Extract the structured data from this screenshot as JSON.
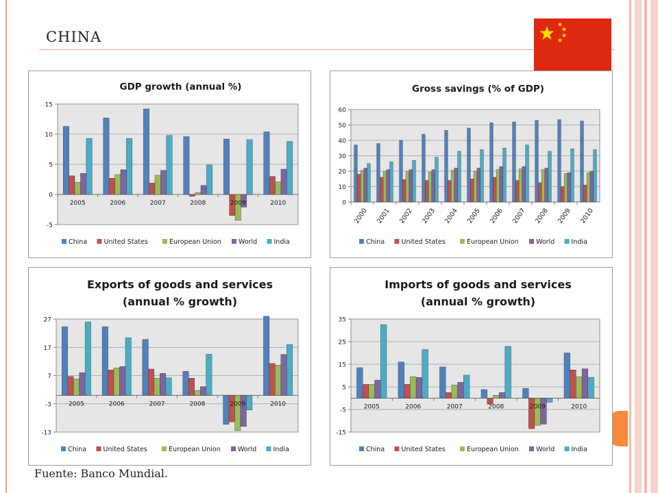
{
  "slide": {
    "title": "CHINA",
    "source": "Fuente: Banco Mundial."
  },
  "colors": {
    "China": "#4f81bd",
    "United States": "#c0504d",
    "European Union": "#9bbb59",
    "World": "#8064a2",
    "India": "#4bacc6",
    "plot_background": "#e6e6e6",
    "flag_red": "#de2910",
    "flag_star": "#ffde00"
  },
  "chart_data": [
    {
      "id": "gdp",
      "type": "bar",
      "title": [
        "GDP growth (annual %)"
      ],
      "categories": [
        "2005",
        "2006",
        "2007",
        "2008",
        "2009",
        "2010"
      ],
      "ylim": [
        -5,
        15
      ],
      "yticks": [
        -5,
        0,
        5,
        10,
        15
      ],
      "grid": true,
      "rotate_x_labels": false,
      "legend_position": "bottom",
      "series": [
        {
          "name": "China",
          "values": [
            11.3,
            12.7,
            14.2,
            9.6,
            9.2,
            10.4
          ]
        },
        {
          "name": "United States",
          "values": [
            3.1,
            2.7,
            1.9,
            -0.3,
            -3.5,
            3.0
          ]
        },
        {
          "name": "European Union",
          "values": [
            2.0,
            3.3,
            3.2,
            0.3,
            -4.3,
            2.1
          ]
        },
        {
          "name": "World",
          "values": [
            3.5,
            4.1,
            4.0,
            1.5,
            -2.1,
            4.2
          ]
        },
        {
          "name": "India",
          "values": [
            9.3,
            9.3,
            9.8,
            4.9,
            9.1,
            8.8
          ]
        }
      ]
    },
    {
      "id": "savings",
      "type": "bar",
      "title": [
        "Gross savings (% of GDP)"
      ],
      "categories": [
        "2000",
        "2001",
        "2002",
        "2003",
        "2004",
        "2005",
        "2006",
        "2007",
        "2008",
        "2009",
        "2010"
      ],
      "ylim": [
        0,
        60
      ],
      "yticks": [
        0,
        10,
        20,
        30,
        40,
        50,
        60
      ],
      "grid": true,
      "rotate_x_labels": true,
      "legend_position": "bottom",
      "series": [
        {
          "name": "China",
          "values": [
            37,
            38,
            40,
            44,
            46.5,
            48,
            51.5,
            52,
            53,
            53.5,
            52.5
          ]
        },
        {
          "name": "United States",
          "values": [
            18,
            16,
            14.5,
            14,
            14,
            15,
            16,
            14,
            12.5,
            10,
            11
          ]
        },
        {
          "name": "European Union",
          "values": [
            20.5,
            20,
            20,
            19.5,
            20.5,
            20,
            21,
            21.5,
            21,
            18.5,
            19
          ]
        },
        {
          "name": "World",
          "values": [
            22,
            21,
            21,
            21,
            22,
            22,
            23,
            23,
            22,
            19,
            20
          ]
        },
        {
          "name": "India",
          "values": [
            25,
            26,
            27,
            29,
            33,
            34,
            35,
            37,
            33,
            34.5,
            34
          ]
        }
      ]
    },
    {
      "id": "exports",
      "type": "bar",
      "title": [
        "Exports of goods and services",
        "(annual % growth)"
      ],
      "categories": [
        "2005",
        "2006",
        "2007",
        "2008",
        "2009",
        "2010"
      ],
      "ylim": [
        -13,
        27
      ],
      "yticks": [
        -13,
        -3,
        7,
        17,
        27
      ],
      "grid": true,
      "rotate_x_labels": false,
      "legend_position": "bottom",
      "series": [
        {
          "name": "China",
          "values": [
            24.3,
            24.3,
            19.8,
            8.5,
            -10.3,
            28
          ]
        },
        {
          "name": "United States",
          "values": [
            6.7,
            9,
            9.3,
            6.1,
            -9.4,
            11.3
          ]
        },
        {
          "name": "European Union",
          "values": [
            5.8,
            9.7,
            6.1,
            1.7,
            -12.5,
            10.7
          ]
        },
        {
          "name": "World",
          "values": [
            8,
            10.2,
            7.8,
            3.1,
            -11,
            14.5
          ]
        },
        {
          "name": "India",
          "values": [
            26,
            20.4,
            6.2,
            14.6,
            -5.2,
            18
          ]
        }
      ]
    },
    {
      "id": "imports",
      "type": "bar",
      "title": [
        "Imports of goods and services",
        "(annual % growth)"
      ],
      "categories": [
        "2005",
        "2006",
        "2007",
        "2008",
        "2009",
        "2010"
      ],
      "ylim": [
        -15,
        35
      ],
      "yticks": [
        -15,
        -5,
        5,
        15,
        25,
        35
      ],
      "grid": true,
      "rotate_x_labels": false,
      "legend_position": "bottom",
      "series": [
        {
          "name": "China",
          "values": [
            13.5,
            16,
            13.8,
            3.8,
            4.3,
            20
          ]
        },
        {
          "name": "United States",
          "values": [
            6.1,
            6.1,
            2.5,
            -2.6,
            -13.5,
            12.5
          ]
        },
        {
          "name": "European Union",
          "values": [
            6.1,
            9.5,
            5.8,
            1.3,
            -12,
            9.5
          ]
        },
        {
          "name": "World",
          "values": [
            8,
            9.2,
            7,
            2.5,
            -11.5,
            13
          ]
        },
        {
          "name": "India",
          "values": [
            32.5,
            21.5,
            10.2,
            22.9,
            -1.8,
            9.2
          ]
        }
      ]
    }
  ]
}
